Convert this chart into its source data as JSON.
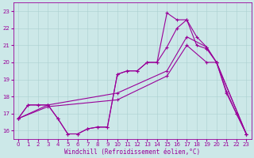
{
  "title": "",
  "xlabel": "Windchill (Refroidissement éolien,°C)",
  "background_color": "#cce8e8",
  "line_color": "#990099",
  "xlim": [
    -0.5,
    23.5
  ],
  "ylim": [
    15.5,
    23.5
  ],
  "yticks": [
    16,
    17,
    18,
    19,
    20,
    21,
    22,
    23
  ],
  "xticks": [
    0,
    1,
    2,
    3,
    4,
    5,
    6,
    7,
    8,
    9,
    10,
    11,
    12,
    13,
    14,
    15,
    16,
    17,
    18,
    19,
    20,
    21,
    22,
    23
  ],
  "lines": [
    {
      "x": [
        0,
        1,
        2,
        3,
        4,
        5,
        6,
        7,
        8,
        9,
        10,
        11,
        12,
        13,
        14,
        15,
        16,
        17,
        18,
        19,
        20,
        21,
        22,
        23
      ],
      "y": [
        16.7,
        17.5,
        17.5,
        17.5,
        16.7,
        15.8,
        15.8,
        16.1,
        16.2,
        16.2,
        19.3,
        19.5,
        19.5,
        20.0,
        20.0,
        22.9,
        22.5,
        22.5,
        21.0,
        20.8,
        20.0,
        18.3,
        17.0,
        15.8
      ]
    },
    {
      "x": [
        0,
        1,
        2,
        3,
        4,
        5,
        6,
        7,
        8,
        9,
        10,
        11,
        12,
        13,
        14,
        15,
        16,
        17,
        18,
        19,
        20,
        21,
        22,
        23
      ],
      "y": [
        16.7,
        17.5,
        17.5,
        17.5,
        16.7,
        15.8,
        15.8,
        16.1,
        16.2,
        16.2,
        19.3,
        19.5,
        19.5,
        20.0,
        20.0,
        20.9,
        22.0,
        22.5,
        21.5,
        20.9,
        20.0,
        18.2,
        17.0,
        15.8
      ]
    },
    {
      "x": [
        0,
        3,
        10,
        15,
        17,
        19,
        20,
        23
      ],
      "y": [
        16.7,
        17.5,
        18.2,
        19.5,
        21.5,
        20.9,
        20.0,
        15.8
      ]
    },
    {
      "x": [
        0,
        3,
        10,
        15,
        17,
        19,
        20,
        23
      ],
      "y": [
        16.7,
        17.4,
        17.8,
        19.2,
        21.0,
        20.0,
        20.0,
        15.8
      ]
    }
  ],
  "tick_fontsize": 5.0,
  "xlabel_fontsize": 5.5,
  "linewidth": 0.8,
  "marker_size": 3.0
}
